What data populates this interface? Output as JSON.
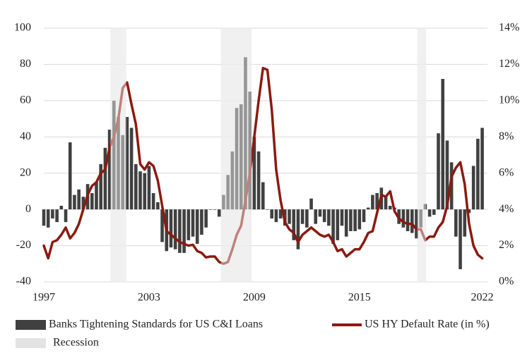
{
  "chart_data": {
    "type": "bar-line",
    "x": [
      1997,
      1997.25,
      1997.5,
      1997.75,
      1998,
      1998.25,
      1998.5,
      1998.75,
      1999,
      1999.25,
      1999.5,
      1999.75,
      2000,
      2000.25,
      2000.5,
      2000.75,
      2001,
      2001.25,
      2001.5,
      2001.75,
      2002,
      2002.25,
      2002.5,
      2002.75,
      2003,
      2003.25,
      2003.5,
      2003.75,
      2004,
      2004.25,
      2004.5,
      2004.75,
      2005,
      2005.25,
      2005.5,
      2005.75,
      2006,
      2006.25,
      2006.5,
      2006.75,
      2007,
      2007.25,
      2007.5,
      2007.75,
      2008,
      2008.25,
      2008.5,
      2008.75,
      2009,
      2009.25,
      2009.5,
      2009.75,
      2010,
      2010.25,
      2010.5,
      2010.75,
      2011,
      2011.25,
      2011.5,
      2011.75,
      2012,
      2012.25,
      2012.5,
      2012.75,
      2013,
      2013.25,
      2013.5,
      2013.75,
      2014,
      2014.25,
      2014.5,
      2014.75,
      2015,
      2015.25,
      2015.5,
      2015.75,
      2016,
      2016.25,
      2016.5,
      2016.75,
      2017,
      2017.25,
      2017.5,
      2017.75,
      2018,
      2018.25,
      2018.5,
      2018.75,
      2019,
      2019.25,
      2019.5,
      2019.75,
      2020,
      2020.25,
      2020.5,
      2020.75,
      2021,
      2021.25,
      2021.5,
      2021.75,
      2022
    ],
    "series": [
      {
        "name": "Banks Tightening Standards for US C&I Loans",
        "kind": "bar",
        "color": "#404040",
        "values": [
          -9,
          -10,
          -5,
          -7,
          2,
          -7,
          37,
          8,
          11,
          7,
          14,
          9,
          15,
          25,
          34,
          44,
          60,
          51,
          41,
          51,
          45,
          25,
          21,
          20,
          24,
          9,
          4,
          -18,
          -23,
          -21,
          -22,
          -24,
          -24,
          -17,
          -15,
          -19,
          -14,
          -10,
          0,
          0,
          -4,
          8,
          19,
          32,
          56,
          58,
          84,
          65,
          40,
          32,
          15,
          0,
          -5,
          -7,
          -5,
          -9,
          -8,
          -17,
          -22,
          -8,
          -10,
          6,
          -8,
          -4,
          -7,
          -9,
          -19,
          -17,
          -9,
          -15,
          -12,
          -12,
          -11,
          -7,
          1,
          8,
          9,
          12,
          7,
          2,
          1,
          -8,
          -10,
          -12,
          -13,
          -16,
          -10,
          3,
          -4,
          -3,
          42,
          72,
          38,
          26,
          -15,
          -33,
          -15,
          -2,
          24,
          39,
          45
        ]
      },
      {
        "name": "US HY Default Rate (in %)",
        "kind": "line",
        "axis": "y2",
        "color": "#8b1a10",
        "values": [
          2.0,
          1.3,
          2.2,
          2.3,
          2.6,
          3.0,
          2.4,
          2.7,
          3.2,
          4.0,
          4.8,
          5.3,
          5.5,
          6.0,
          6.2,
          7.4,
          8.0,
          9.0,
          10.7,
          11.0,
          9.8,
          8.7,
          6.5,
          6.2,
          6.6,
          6.4,
          5.6,
          4.2,
          2.8,
          2.6,
          2.4,
          2.2,
          2.1,
          2.0,
          2.05,
          1.7,
          1.6,
          1.35,
          1.4,
          1.4,
          1.1,
          1.0,
          1.1,
          1.8,
          2.6,
          3.1,
          4.5,
          6.0,
          8.0,
          10.0,
          11.8,
          11.7,
          9.5,
          6.2,
          4.5,
          3.3,
          2.9,
          2.7,
          2.2,
          2.6,
          2.8,
          3.0,
          2.8,
          2.6,
          2.5,
          2.6,
          2.2,
          1.7,
          1.8,
          1.4,
          1.6,
          1.8,
          1.8,
          2.2,
          2.7,
          2.8,
          3.8,
          4.8,
          4.7,
          5.0,
          3.9,
          3.5,
          3.3,
          3.2,
          3.2,
          2.9,
          2.9,
          2.3,
          2.5,
          2.5,
          3.0,
          3.3,
          4.2,
          5.8,
          6.3,
          6.6,
          5.4,
          3.2,
          2.0,
          1.5,
          1.3
        ]
      }
    ],
    "recession": {
      "name": "Recession",
      "color": "#e3e3e3",
      "periods": [
        [
          2000.8,
          2001.7
        ],
        [
          2007.1,
          2008.85
        ],
        [
          2018.3,
          2018.8
        ]
      ]
    },
    "xlim": [
      1997,
      2022.3
    ],
    "xticks": [
      1997,
      2003,
      2009,
      2015,
      2022
    ],
    "ylim": [
      -40,
      100
    ],
    "yticks": [
      -40,
      -20,
      0,
      20,
      40,
      60,
      80,
      100
    ],
    "y2lim": [
      0,
      14
    ],
    "y2ticks": [
      {
        "value": 0,
        "label": "0%"
      },
      {
        "value": 2,
        "label": "2%"
      },
      {
        "value": 4,
        "label": "4%"
      },
      {
        "value": 6,
        "label": "6%"
      },
      {
        "value": 8,
        "label": "8%"
      },
      {
        "value": 10,
        "label": "10%"
      },
      {
        "value": 12,
        "label": "12%"
      },
      {
        "value": 14,
        "label": "14%"
      }
    ],
    "grid": true,
    "legend": "bottom"
  }
}
